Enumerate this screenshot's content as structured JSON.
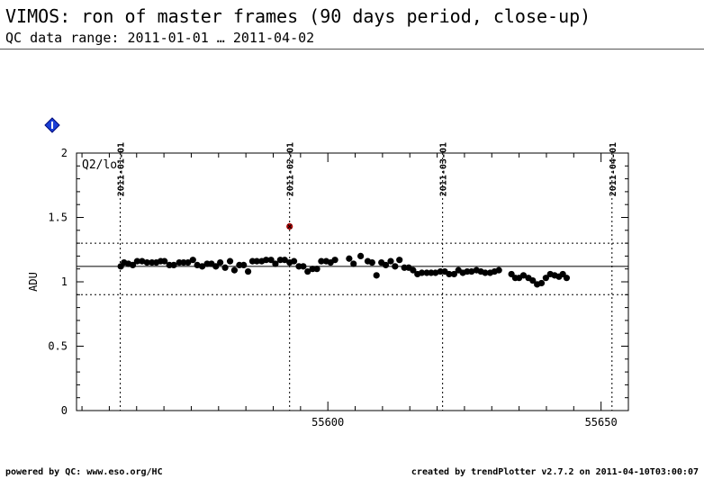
{
  "header": {
    "title": "VIMOS: ron of master frames (90 days period, close-up)",
    "subtitle": "QC data range: 2011-01-01 … 2011-04-02"
  },
  "footer": {
    "left": "powered by QC: www.eso.org/HC",
    "right": "created by trendPlotter v2.7.2 on 2011-04-10T03:00:07"
  },
  "chart_data": {
    "type": "scatter",
    "panel_label": "Q2/lo",
    "ylabel": "ADU",
    "xlim": [
      55554,
      55655
    ],
    "ylim": [
      0,
      2
    ],
    "x_ticks": [
      {
        "value": 55600,
        "label": "55600"
      },
      {
        "value": 55650,
        "label": "55650"
      }
    ],
    "y_ticks": [
      {
        "value": 0,
        "label": "0"
      },
      {
        "value": 0.5,
        "label": "0.5"
      },
      {
        "value": 1,
        "label": "1"
      },
      {
        "value": 1.5,
        "label": "1.5"
      },
      {
        "value": 2,
        "label": "2"
      }
    ],
    "date_markers": [
      {
        "mjd": 55562,
        "label": "2011-01-01"
      },
      {
        "mjd": 55593,
        "label": "2011-02-01"
      },
      {
        "mjd": 55621,
        "label": "2011-03-01"
      },
      {
        "mjd": 55652,
        "label": "2011-04-01"
      }
    ],
    "reference_line": 1.12,
    "thresholds": [
      0.9,
      1.3
    ],
    "outlier_color": "#b30000",
    "point_color": "#000000",
    "info_icon": "info-diamond-icon",
    "outliers": [
      {
        "x": 55593.0,
        "y": 1.43
      }
    ],
    "points": [
      {
        "x": 55562.1,
        "y": 1.12
      },
      {
        "x": 55562.7,
        "y": 1.15
      },
      {
        "x": 55563.5,
        "y": 1.14
      },
      {
        "x": 55564.3,
        "y": 1.13
      },
      {
        "x": 55565.1,
        "y": 1.16
      },
      {
        "x": 55566.0,
        "y": 1.16
      },
      {
        "x": 55566.9,
        "y": 1.15
      },
      {
        "x": 55567.8,
        "y": 1.15
      },
      {
        "x": 55568.6,
        "y": 1.15
      },
      {
        "x": 55569.4,
        "y": 1.16
      },
      {
        "x": 55570.1,
        "y": 1.16
      },
      {
        "x": 55571.0,
        "y": 1.13
      },
      {
        "x": 55571.8,
        "y": 1.13
      },
      {
        "x": 55572.8,
        "y": 1.15
      },
      {
        "x": 55573.6,
        "y": 1.15
      },
      {
        "x": 55574.4,
        "y": 1.15
      },
      {
        "x": 55575.3,
        "y": 1.17
      },
      {
        "x": 55576.1,
        "y": 1.13
      },
      {
        "x": 55577.0,
        "y": 1.12
      },
      {
        "x": 55577.9,
        "y": 1.14
      },
      {
        "x": 55578.7,
        "y": 1.14
      },
      {
        "x": 55579.5,
        "y": 1.12
      },
      {
        "x": 55580.3,
        "y": 1.15
      },
      {
        "x": 55581.2,
        "y": 1.11
      },
      {
        "x": 55582.1,
        "y": 1.16
      },
      {
        "x": 55582.9,
        "y": 1.09
      },
      {
        "x": 55583.8,
        "y": 1.13
      },
      {
        "x": 55584.6,
        "y": 1.13
      },
      {
        "x": 55585.4,
        "y": 1.08
      },
      {
        "x": 55586.2,
        "y": 1.16
      },
      {
        "x": 55587.0,
        "y": 1.16
      },
      {
        "x": 55587.9,
        "y": 1.16
      },
      {
        "x": 55588.7,
        "y": 1.17
      },
      {
        "x": 55589.6,
        "y": 1.17
      },
      {
        "x": 55590.4,
        "y": 1.14
      },
      {
        "x": 55591.3,
        "y": 1.17
      },
      {
        "x": 55592.1,
        "y": 1.17
      },
      {
        "x": 55593.0,
        "y": 1.15
      },
      {
        "x": 55593.8,
        "y": 1.16
      },
      {
        "x": 55594.7,
        "y": 1.12
      },
      {
        "x": 55595.5,
        "y": 1.12
      },
      {
        "x": 55596.3,
        "y": 1.08
      },
      {
        "x": 55597.2,
        "y": 1.1
      },
      {
        "x": 55598.0,
        "y": 1.1
      },
      {
        "x": 55598.8,
        "y": 1.16
      },
      {
        "x": 55599.7,
        "y": 1.16
      },
      {
        "x": 55600.5,
        "y": 1.15
      },
      {
        "x": 55601.3,
        "y": 1.17
      },
      {
        "x": 55603.9,
        "y": 1.18
      },
      {
        "x": 55604.7,
        "y": 1.14
      },
      {
        "x": 55606.0,
        "y": 1.2
      },
      {
        "x": 55607.3,
        "y": 1.16
      },
      {
        "x": 55608.1,
        "y": 1.15
      },
      {
        "x": 55608.9,
        "y": 1.05
      },
      {
        "x": 55609.8,
        "y": 1.15
      },
      {
        "x": 55610.6,
        "y": 1.13
      },
      {
        "x": 55611.5,
        "y": 1.16
      },
      {
        "x": 55612.3,
        "y": 1.12
      },
      {
        "x": 55613.1,
        "y": 1.17
      },
      {
        "x": 55614.0,
        "y": 1.11
      },
      {
        "x": 55614.8,
        "y": 1.11
      },
      {
        "x": 55615.6,
        "y": 1.09
      },
      {
        "x": 55616.4,
        "y": 1.06
      },
      {
        "x": 55617.2,
        "y": 1.07
      },
      {
        "x": 55618.1,
        "y": 1.07
      },
      {
        "x": 55618.9,
        "y": 1.07
      },
      {
        "x": 55619.7,
        "y": 1.07
      },
      {
        "x": 55620.6,
        "y": 1.08
      },
      {
        "x": 55621.4,
        "y": 1.08
      },
      {
        "x": 55622.2,
        "y": 1.06
      },
      {
        "x": 55623.1,
        "y": 1.06
      },
      {
        "x": 55623.9,
        "y": 1.09
      },
      {
        "x": 55624.7,
        "y": 1.07
      },
      {
        "x": 55625.5,
        "y": 1.08
      },
      {
        "x": 55626.3,
        "y": 1.08
      },
      {
        "x": 55627.2,
        "y": 1.09
      },
      {
        "x": 55628.0,
        "y": 1.08
      },
      {
        "x": 55628.8,
        "y": 1.07
      },
      {
        "x": 55629.7,
        "y": 1.07
      },
      {
        "x": 55630.5,
        "y": 1.08
      },
      {
        "x": 55631.3,
        "y": 1.09
      },
      {
        "x": 55633.6,
        "y": 1.06
      },
      {
        "x": 55634.3,
        "y": 1.03
      },
      {
        "x": 55635.0,
        "y": 1.03
      },
      {
        "x": 55635.8,
        "y": 1.05
      },
      {
        "x": 55636.7,
        "y": 1.03
      },
      {
        "x": 55637.5,
        "y": 1.01
      },
      {
        "x": 55638.3,
        "y": 0.98
      },
      {
        "x": 55639.1,
        "y": 0.99
      },
      {
        "x": 55639.9,
        "y": 1.03
      },
      {
        "x": 55640.7,
        "y": 1.06
      },
      {
        "x": 55641.5,
        "y": 1.05
      },
      {
        "x": 55642.3,
        "y": 1.04
      },
      {
        "x": 55643.0,
        "y": 1.06
      },
      {
        "x": 55643.7,
        "y": 1.03
      }
    ]
  }
}
